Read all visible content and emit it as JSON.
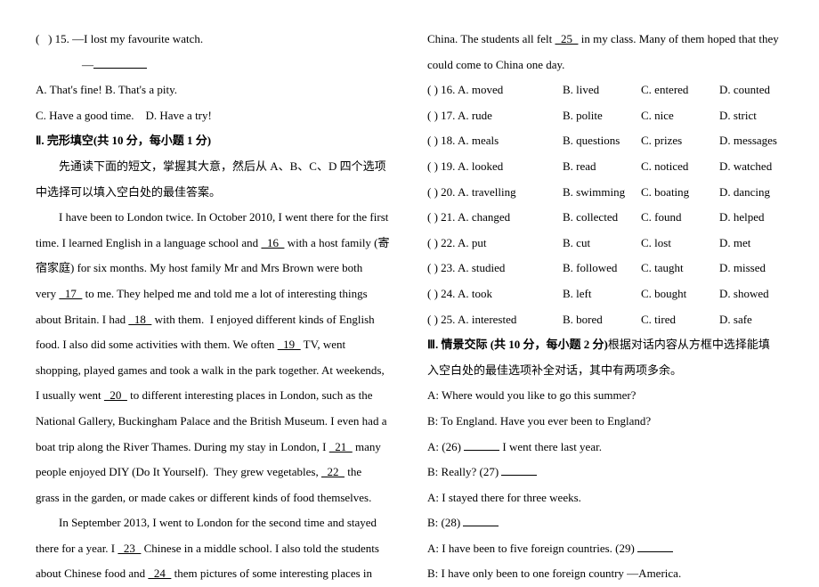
{
  "left": {
    "q15_stem": "(   ) 15. —I lost my favourite watch.",
    "q15_dash": "—",
    "q15_a": "A. That's fine!",
    "q15_b": "B. That's a pity.",
    "q15_c": "C. Have a good time.",
    "q15_d": "D. Have a try!",
    "sec2_title": "Ⅱ. 完形填空(共 10 分，每小题 1 分)",
    "sec2_instr": "先通读下面的短文，掌握其大意，然后从 A、B、C、D 四个选项中选择可以填入空白处的最佳答案。",
    "p1_a": "I have been to London twice. In October 2010, I went there for the first",
    "p1_b": "time. I learned English in a language school and ",
    "blank16": "  16  ",
    "p1_c": " with a host family (寄",
    "p1_d": "宿家庭) for six months. My host family Mr and Mrs Brown were both",
    "p1_e": "very ",
    "blank17": "  17  ",
    "p1_f": " to me. They helped me and told me a lot of interesting things",
    "p1_g": "about Britain. I had ",
    "blank18": "  18  ",
    "p1_h": " with them.  I enjoyed different kinds of English",
    "p1_i": "food. I also did some activities with them. We often ",
    "blank19": "  19  ",
    "p1_j": " TV, went",
    "p1_k": "shopping, played games and took a walk in the park together. At weekends,",
    "p1_l": "I usually went ",
    "blank20": "  20  ",
    "p1_m": " to different interesting places in London, such as the",
    "p1_n": "National Gallery, Buckingham Palace and the British Museum. I even had a",
    "p1_o": "boat trip along the River Thames. During my stay in London, I ",
    "blank21": "  21  ",
    "p1_p": " many",
    "p1_q": "people enjoyed DIY (Do It Yourself).  They grew vegetables, ",
    "blank22": "  22  ",
    "p1_r": " the",
    "p1_s": "grass in the garden, or made cakes or different kinds of food themselves.",
    "p2_a": "In September 2013, I went to London for the second time and stayed",
    "p2_b": "there for a year. I ",
    "blank23": "  23  ",
    "p2_c": " Chinese in a middle school. I also told the students",
    "p2_d": "about Chinese food and ",
    "blank24": "  24  ",
    "p2_e": " them pictures of some interesting places in"
  },
  "right": {
    "cont_a": "China. The students all felt ",
    "blank25": "  25  ",
    "cont_b": " in my class. Many of them hoped that they",
    "cont_c": "could come to China one day.",
    "opts": [
      {
        "n": "(   ) 16. A. moved",
        "b": "B. lived",
        "c": "C. entered",
        "d": "D. counted"
      },
      {
        "n": "(   ) 17. A. rude",
        "b": "B. polite",
        "c": "C. nice",
        "d": "D. strict"
      },
      {
        "n": "(   ) 18. A. meals",
        "b": "B. questions",
        "c": "C. prizes",
        "d": "D. messages"
      },
      {
        "n": "(   ) 19. A. looked",
        "b": "B. read",
        "c": "C. noticed",
        "d": "D. watched"
      },
      {
        "n": "(   ) 20. A. travelling",
        "b": "B. swimming",
        "c": "C. boating",
        "d": "D. dancing"
      },
      {
        "n": "(   ) 21. A. changed",
        "b": "B. collected",
        "c": "C. found",
        "d": "D. helped"
      },
      {
        "n": "(   ) 22. A. put",
        "b": "B. cut",
        "c": "C. lost",
        "d": "D. met"
      },
      {
        "n": "(   ) 23. A. studied",
        "b": "B. followed",
        "c": "C. taught",
        "d": "D. missed"
      },
      {
        "n": "(   ) 24. A. took",
        "b": "B. left",
        "c": "C. bought",
        "d": "D. showed"
      },
      {
        "n": "(   ) 25. A. interested",
        "b": "B. bored",
        "c": "C. tired",
        "d": "D. safe"
      }
    ],
    "sec3_title_a": "Ⅲ. 情景交际 (共 10 分，每小题 2 分)",
    "sec3_title_b": "根据对话内容从方框中选择能填",
    "sec3_instr": "入空白处的最佳选项补全对话，其中有两项多余。",
    "d1": "A: Where would you like to go this summer?",
    "d2": "B: To England. Have you ever been to England?",
    "d3a": "A: (26) ",
    "d3b": " I went there last year.",
    "d4": "B: Really? (27) ",
    "d5": "A: I stayed there for three weeks.",
    "d6": "B: (28) ",
    "d7a": "A: I have been to five foreign countries. (29) ",
    "d8": "B: I have only been to one foreign country —America."
  }
}
